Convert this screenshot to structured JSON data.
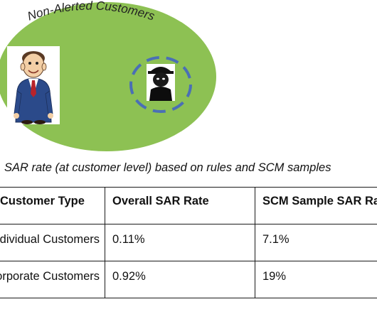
{
  "diagram": {
    "group_label": "Non-Alerted Customers",
    "ellipse_color": "#8dc153",
    "dashed_ring_color": "#4a6fb5",
    "icons": [
      "businessman-icon",
      "masked-thief-icon"
    ]
  },
  "caption": "SAR rate (at customer level) based on rules and SCM samples",
  "table": {
    "headers": [
      "Customer Type",
      "Overall SAR Rate",
      "SCM Sample SAR Rate"
    ],
    "rows": [
      [
        "Individual Customers",
        "0.11%",
        "7.1%"
      ],
      [
        "Corporate Customers",
        "0.92%",
        "19%"
      ]
    ]
  }
}
